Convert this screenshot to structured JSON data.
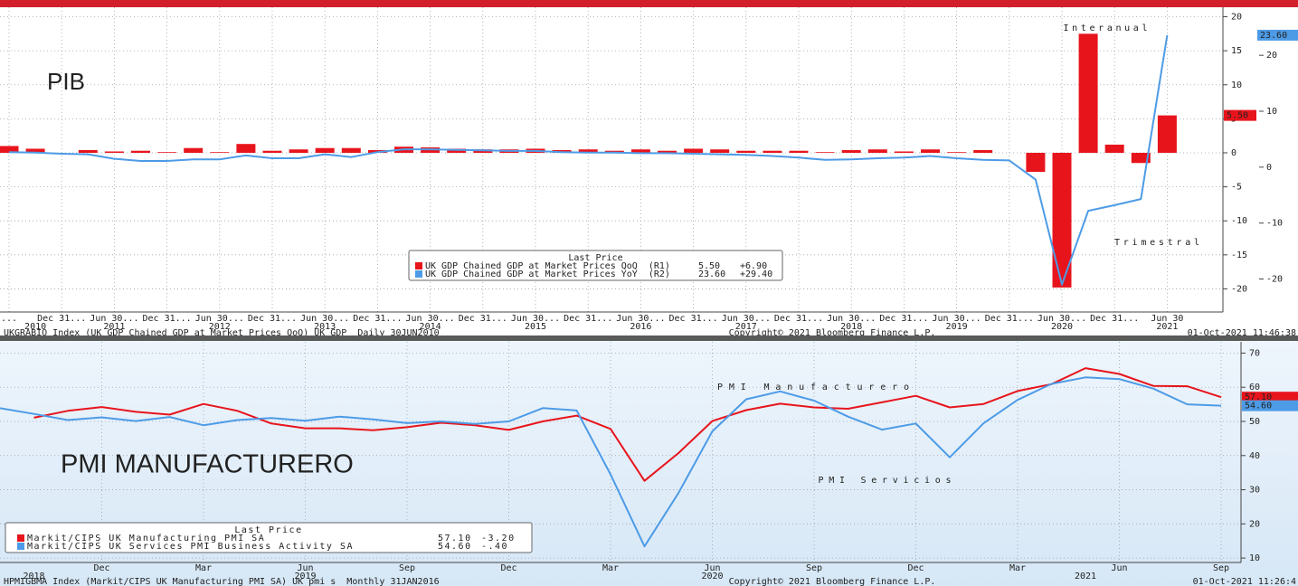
{
  "chart_data": [
    {
      "type": "bar",
      "heading": "PIB",
      "categories": [
        "...",
        null,
        "Dec 31...",
        null,
        "Jun 30...",
        null,
        "Dec 31...",
        null,
        "Jun 30...",
        null,
        "Dec 31...",
        null,
        "Jun 30...",
        null,
        "Dec 31...",
        null,
        "Jun 30...",
        null,
        "Dec 31...",
        null,
        "Jun 30...",
        null,
        "Dec 31...",
        null,
        "Jun 30...",
        null,
        "Dec 31...",
        null,
        "Jun 30...",
        null,
        "Dec 31...",
        null,
        "Jun 30...",
        null,
        "Dec 31...",
        null,
        "Jun 30...",
        null,
        "Dec 31...",
        null,
        "Jun 30...",
        null,
        "Dec 31...",
        null,
        "Jun 30"
      ],
      "x_years": [
        null,
        "2010",
        null,
        null,
        "2011",
        null,
        null,
        null,
        "2012",
        null,
        null,
        null,
        "2013",
        null,
        null,
        null,
        "2014",
        null,
        null,
        null,
        "2015",
        null,
        null,
        null,
        "2016",
        null,
        null,
        null,
        "2017",
        null,
        null,
        null,
        "2018",
        null,
        null,
        null,
        "2019",
        null,
        null,
        null,
        "2020",
        null,
        null,
        null,
        "2021"
      ],
      "series": [
        {
          "name": "UK GDP Chained GDP at Market Prices QoQ  (R1)",
          "type": "bar",
          "axis": "y",
          "color": "#e8141c",
          "values": [
            1.0,
            0.6,
            0.0,
            0.4,
            0.2,
            0.3,
            0.1,
            0.7,
            0.1,
            1.3,
            0.3,
            0.5,
            0.7,
            0.7,
            0.4,
            0.9,
            0.8,
            0.6,
            0.5,
            0.5,
            0.6,
            0.4,
            0.5,
            0.3,
            0.5,
            0.3,
            0.6,
            0.5,
            0.3,
            0.3,
            0.3,
            0.1,
            0.4,
            0.5,
            0.2,
            0.5,
            0.1,
            0.4,
            0.0,
            -2.8,
            -19.8,
            17.5,
            1.2,
            -1.5,
            5.5
          ],
          "last_label": "5.50",
          "change_label": "+6.90"
        },
        {
          "name": "UK GDP Chained GDP at Market Prices YoY  (R2)",
          "type": "line",
          "axis": "y2",
          "color": "#4d9be6",
          "values": [
            2.7,
            2.6,
            2.4,
            2.3,
            1.5,
            1.1,
            1.1,
            1.4,
            1.4,
            2.1,
            1.6,
            1.6,
            2.3,
            1.8,
            2.7,
            3.2,
            3.2,
            3.1,
            3.0,
            2.9,
            2.9,
            2.7,
            2.6,
            2.6,
            2.5,
            2.5,
            2.4,
            2.3,
            2.2,
            2.0,
            1.7,
            1.3,
            1.4,
            1.6,
            1.7,
            2.0,
            1.6,
            1.3,
            1.2,
            -2.2,
            -21.0,
            -7.8,
            -6.8,
            -5.7,
            23.6
          ],
          "last_label": "23.60",
          "change_label": "+29.40"
        }
      ],
      "ylim": [
        -23.4,
        21.4
      ],
      "yticks": [
        20,
        15,
        10,
        5,
        0,
        -5,
        -10,
        -15,
        -20
      ],
      "y2lim": [
        -25.9,
        28.6
      ],
      "y2ticks": [
        20,
        10,
        0,
        -10,
        -20
      ],
      "grid": true,
      "legend_title": "Last Price",
      "annotations": [
        {
          "text": "Interanual",
          "color": "#5fa8ea"
        },
        {
          "text": "Trimestral",
          "color": "#e8141c"
        }
      ],
      "footer": {
        "left": "UKGRABIO Index (UK GDP Chained GDP at Market Prices QoQ) UK GDP  Daily 30JUN2010",
        "center": "Copyright© 2021 Bloomberg Finance L.P.",
        "right": "01-Oct-2021 11:46:38"
      }
    },
    {
      "type": "line",
      "heading": "PMI MANUFACTURERO",
      "categories": [
        null,
        null,
        null,
        "Dec",
        null,
        null,
        "Mar",
        null,
        null,
        "Jun",
        null,
        null,
        "Sep",
        null,
        null,
        "Dec",
        null,
        null,
        "Mar",
        null,
        null,
        "Jun",
        null,
        null,
        "Sep",
        null,
        null,
        "Dec",
        null,
        null,
        "Mar",
        null,
        null,
        "Jun",
        null,
        null,
        "Sep"
      ],
      "x_years": [
        null,
        "2018",
        null,
        null,
        null,
        null,
        null,
        null,
        null,
        "2019",
        null,
        null,
        null,
        null,
        null,
        null,
        null,
        null,
        null,
        null,
        null,
        "2020",
        null,
        null,
        null,
        null,
        null,
        null,
        null,
        null,
        null,
        null,
        "2021",
        null,
        null,
        null,
        null
      ],
      "series": [
        {
          "name": "Markit/CIPS UK Manufacturing PMI SA",
          "type": "line",
          "axis": "y",
          "color": "#e8141c",
          "values": [
            null,
            51.1,
            53.1,
            54.2,
            52.8,
            52.0,
            55.1,
            53.1,
            49.4,
            48.0,
            48.0,
            47.4,
            48.3,
            49.6,
            48.9,
            47.5,
            50.0,
            51.7,
            47.8,
            32.6,
            40.7,
            50.1,
            53.3,
            55.2,
            54.1,
            53.7,
            55.6,
            57.5,
            54.1,
            55.1,
            58.9,
            60.9,
            65.6,
            63.9,
            60.4,
            60.3,
            57.1
          ],
          "last_label": "57.10",
          "change_label": "-3.20"
        },
        {
          "name": "Markit/CIPS UK Services PMI Business Activity SA",
          "type": "line",
          "axis": "y",
          "color": "#4d9be6",
          "values": [
            53.9,
            52.2,
            50.4,
            51.2,
            50.1,
            51.3,
            48.9,
            50.4,
            51.0,
            50.2,
            51.4,
            50.6,
            49.5,
            50.0,
            49.3,
            50.0,
            53.9,
            53.2,
            34.5,
            13.4,
            29.0,
            47.1,
            56.5,
            58.8,
            56.1,
            51.4,
            47.6,
            49.4,
            39.5,
            49.5,
            56.3,
            61.0,
            62.9,
            62.4,
            59.6,
            55.0,
            54.6
          ],
          "last_label": "54.60",
          "change_label": "-.40"
        }
      ],
      "ylim": [
        8.7,
        73.3
      ],
      "yticks": [
        10,
        20,
        30,
        40,
        50,
        60,
        70
      ],
      "grid": true,
      "legend_title": "Last Price",
      "annotations": [
        {
          "text": "PMI Manufacturero",
          "color": "#e8141c"
        },
        {
          "text": "PMI Servicios",
          "color": "#5fa8ea"
        }
      ],
      "footer": {
        "left": "HPMIGBMA Index (Markit/CIPS UK Manufacturing PMI SA) UK pmi s  Monthly 31JAN2016",
        "center": "Copyright© 2021 Bloomberg Finance L.P.",
        "right": "01-Oct-2021 11:26:4"
      }
    }
  ]
}
